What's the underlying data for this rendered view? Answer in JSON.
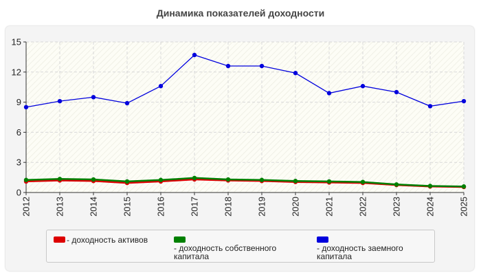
{
  "chart_data": {
    "type": "line",
    "title": "Динамика показателей доходности",
    "xlabel": "",
    "ylabel": "",
    "x": [
      "2012",
      "2013",
      "2014",
      "2015",
      "2016",
      "2017",
      "2018",
      "2019",
      "2020",
      "2021",
      "2022",
      "2023",
      "2024",
      "2025"
    ],
    "ylim": [
      0,
      15
    ],
    "yticks": [
      0,
      3,
      6,
      9,
      12,
      15
    ],
    "grid": true,
    "legend_position": "bottom",
    "series": [
      {
        "name": "- доходность активов",
        "color": "#dd0000",
        "values": [
          1.1,
          1.2,
          1.15,
          0.95,
          1.1,
          1.3,
          1.2,
          1.15,
          1.05,
          1.0,
          0.95,
          0.75,
          0.6,
          0.55
        ]
      },
      {
        "name": "- доходность собственного капитала",
        "color": "#008000",
        "values": [
          1.25,
          1.35,
          1.3,
          1.1,
          1.25,
          1.45,
          1.3,
          1.25,
          1.15,
          1.1,
          1.05,
          0.8,
          0.65,
          0.6
        ]
      },
      {
        "name": "- доходность заемного капитала",
        "color": "#0000dd",
        "values": [
          8.5,
          9.1,
          9.5,
          8.9,
          10.6,
          13.7,
          12.6,
          12.6,
          11.9,
          9.9,
          10.6,
          10.0,
          8.6,
          9.1
        ]
      }
    ]
  }
}
